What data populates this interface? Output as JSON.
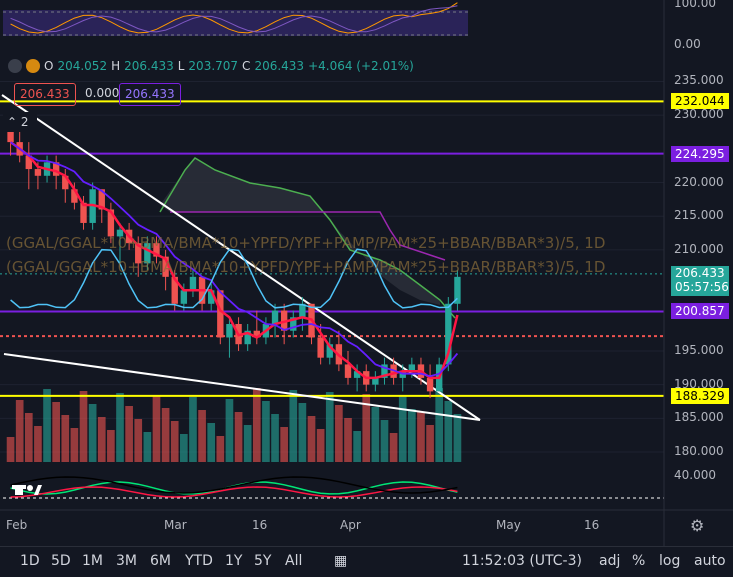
{
  "symbol": {
    "o_label": "O",
    "o": "204.052",
    "h_label": "H",
    "h": "206.433",
    "l_label": "L",
    "l": "203.707",
    "c_label": "C",
    "c": "206.433",
    "change": "+4.064 (+2.01%)"
  },
  "badges": {
    "left": "206.433",
    "mid": "0.000",
    "right": "206.433"
  },
  "indicator_count": "2",
  "formula": "(GGAL/GGAL*10+BMA/BMA*10+YPFD/YPF+PAMP/PAM*25+BBAR/BBAR*3)/5, 1D",
  "price_axis": {
    "ticks": [
      "235.000",
      "230.000",
      "220.000",
      "215.000",
      "210.000",
      "195.000",
      "190.000",
      "185.000",
      "180.000"
    ],
    "tags": [
      {
        "text": "232.044",
        "bg": "#ffff00",
        "fg": "#000000"
      },
      {
        "text": "224.295",
        "bg": "#7b1fe0",
        "fg": "#ffffff"
      },
      {
        "text": "206.433",
        "text2": "05:57:56",
        "bg": "#26a69a",
        "fg": "#ffffff"
      },
      {
        "text": "200.857",
        "bg": "#7b1fe0",
        "fg": "#ffffff"
      },
      {
        "text": "188.329",
        "bg": "#ffff00",
        "fg": "#000000"
      }
    ]
  },
  "top_panel_ticks": [
    "100.00",
    "0.00"
  ],
  "bottom_panel_ticks": [
    "40.000"
  ],
  "x_axis": [
    "Feb",
    "Mar",
    "16",
    "Apr",
    "May",
    "16"
  ],
  "bottom_bar": {
    "ranges": [
      "1D",
      "5D",
      "1M",
      "3M",
      "6M",
      "YTD",
      "1Y",
      "5Y",
      "All"
    ],
    "time": "11:52:03 (UTC-3)",
    "opts": [
      "adj",
      "%",
      "log",
      "auto"
    ]
  },
  "colors": {
    "up": "#26a69a",
    "down": "#ef5350",
    "yellow": "#ffff00",
    "purple": "#7b1fe0",
    "bg": "#131722"
  },
  "chart_data": {
    "type": "candlestick",
    "x_start": "Feb",
    "ylim": [
      180,
      237
    ],
    "candles": [
      [
        229,
        229,
        224,
        226
      ],
      [
        226,
        228,
        223,
        224
      ],
      [
        224,
        226,
        219,
        222
      ],
      [
        222,
        223,
        219,
        221
      ],
      [
        221,
        224,
        220,
        223
      ],
      [
        223,
        224,
        219,
        221
      ],
      [
        221,
        222,
        217,
        219
      ],
      [
        219,
        220,
        216,
        217
      ],
      [
        217,
        218,
        213,
        214
      ],
      [
        214,
        220,
        213,
        219
      ],
      [
        219,
        219,
        214,
        216
      ],
      [
        216,
        217,
        211,
        212
      ],
      [
        212,
        214,
        208,
        213
      ],
      [
        213,
        214,
        210,
        211
      ],
      [
        211,
        212,
        206,
        208
      ],
      [
        208,
        212,
        207,
        211
      ],
      [
        211,
        212,
        208,
        209
      ],
      [
        209,
        210,
        204,
        206
      ],
      [
        206,
        207,
        201,
        202
      ],
      [
        202,
        205,
        201,
        204
      ],
      [
        204,
        207,
        203,
        206
      ],
      [
        206,
        206,
        201,
        202
      ],
      [
        202,
        205,
        201,
        204
      ],
      [
        204,
        204,
        196,
        197
      ],
      [
        197,
        200,
        194,
        199
      ],
      [
        199,
        200,
        195,
        196
      ],
      [
        196,
        199,
        195,
        198
      ],
      [
        198,
        201,
        196,
        197
      ],
      [
        197,
        200,
        196,
        199
      ],
      [
        199,
        202,
        197,
        201
      ],
      [
        201,
        202,
        196,
        198
      ],
      [
        198,
        201,
        197,
        200
      ],
      [
        200,
        203,
        198,
        202
      ],
      [
        202,
        202,
        196,
        197
      ],
      [
        197,
        199,
        193,
        194
      ],
      [
        194,
        197,
        193,
        196
      ],
      [
        196,
        198,
        192,
        193
      ],
      [
        193,
        195,
        190,
        191
      ],
      [
        191,
        193,
        189,
        192
      ],
      [
        192,
        193,
        189,
        190
      ],
      [
        190,
        192,
        189,
        191
      ],
      [
        191,
        194,
        190,
        193
      ],
      [
        193,
        194,
        190,
        191
      ],
      [
        191,
        193,
        189,
        192
      ],
      [
        192,
        194,
        191,
        193
      ],
      [
        193,
        194,
        190,
        191
      ],
      [
        191,
        193,
        188,
        189
      ],
      [
        189,
        194,
        189,
        193
      ],
      [
        193,
        203,
        192,
        202
      ],
      [
        202,
        207,
        201,
        206
      ]
    ],
    "levels": {
      "yellow": [
        232.044,
        188.329
      ],
      "purple": [
        224.295,
        200.857
      ]
    }
  }
}
